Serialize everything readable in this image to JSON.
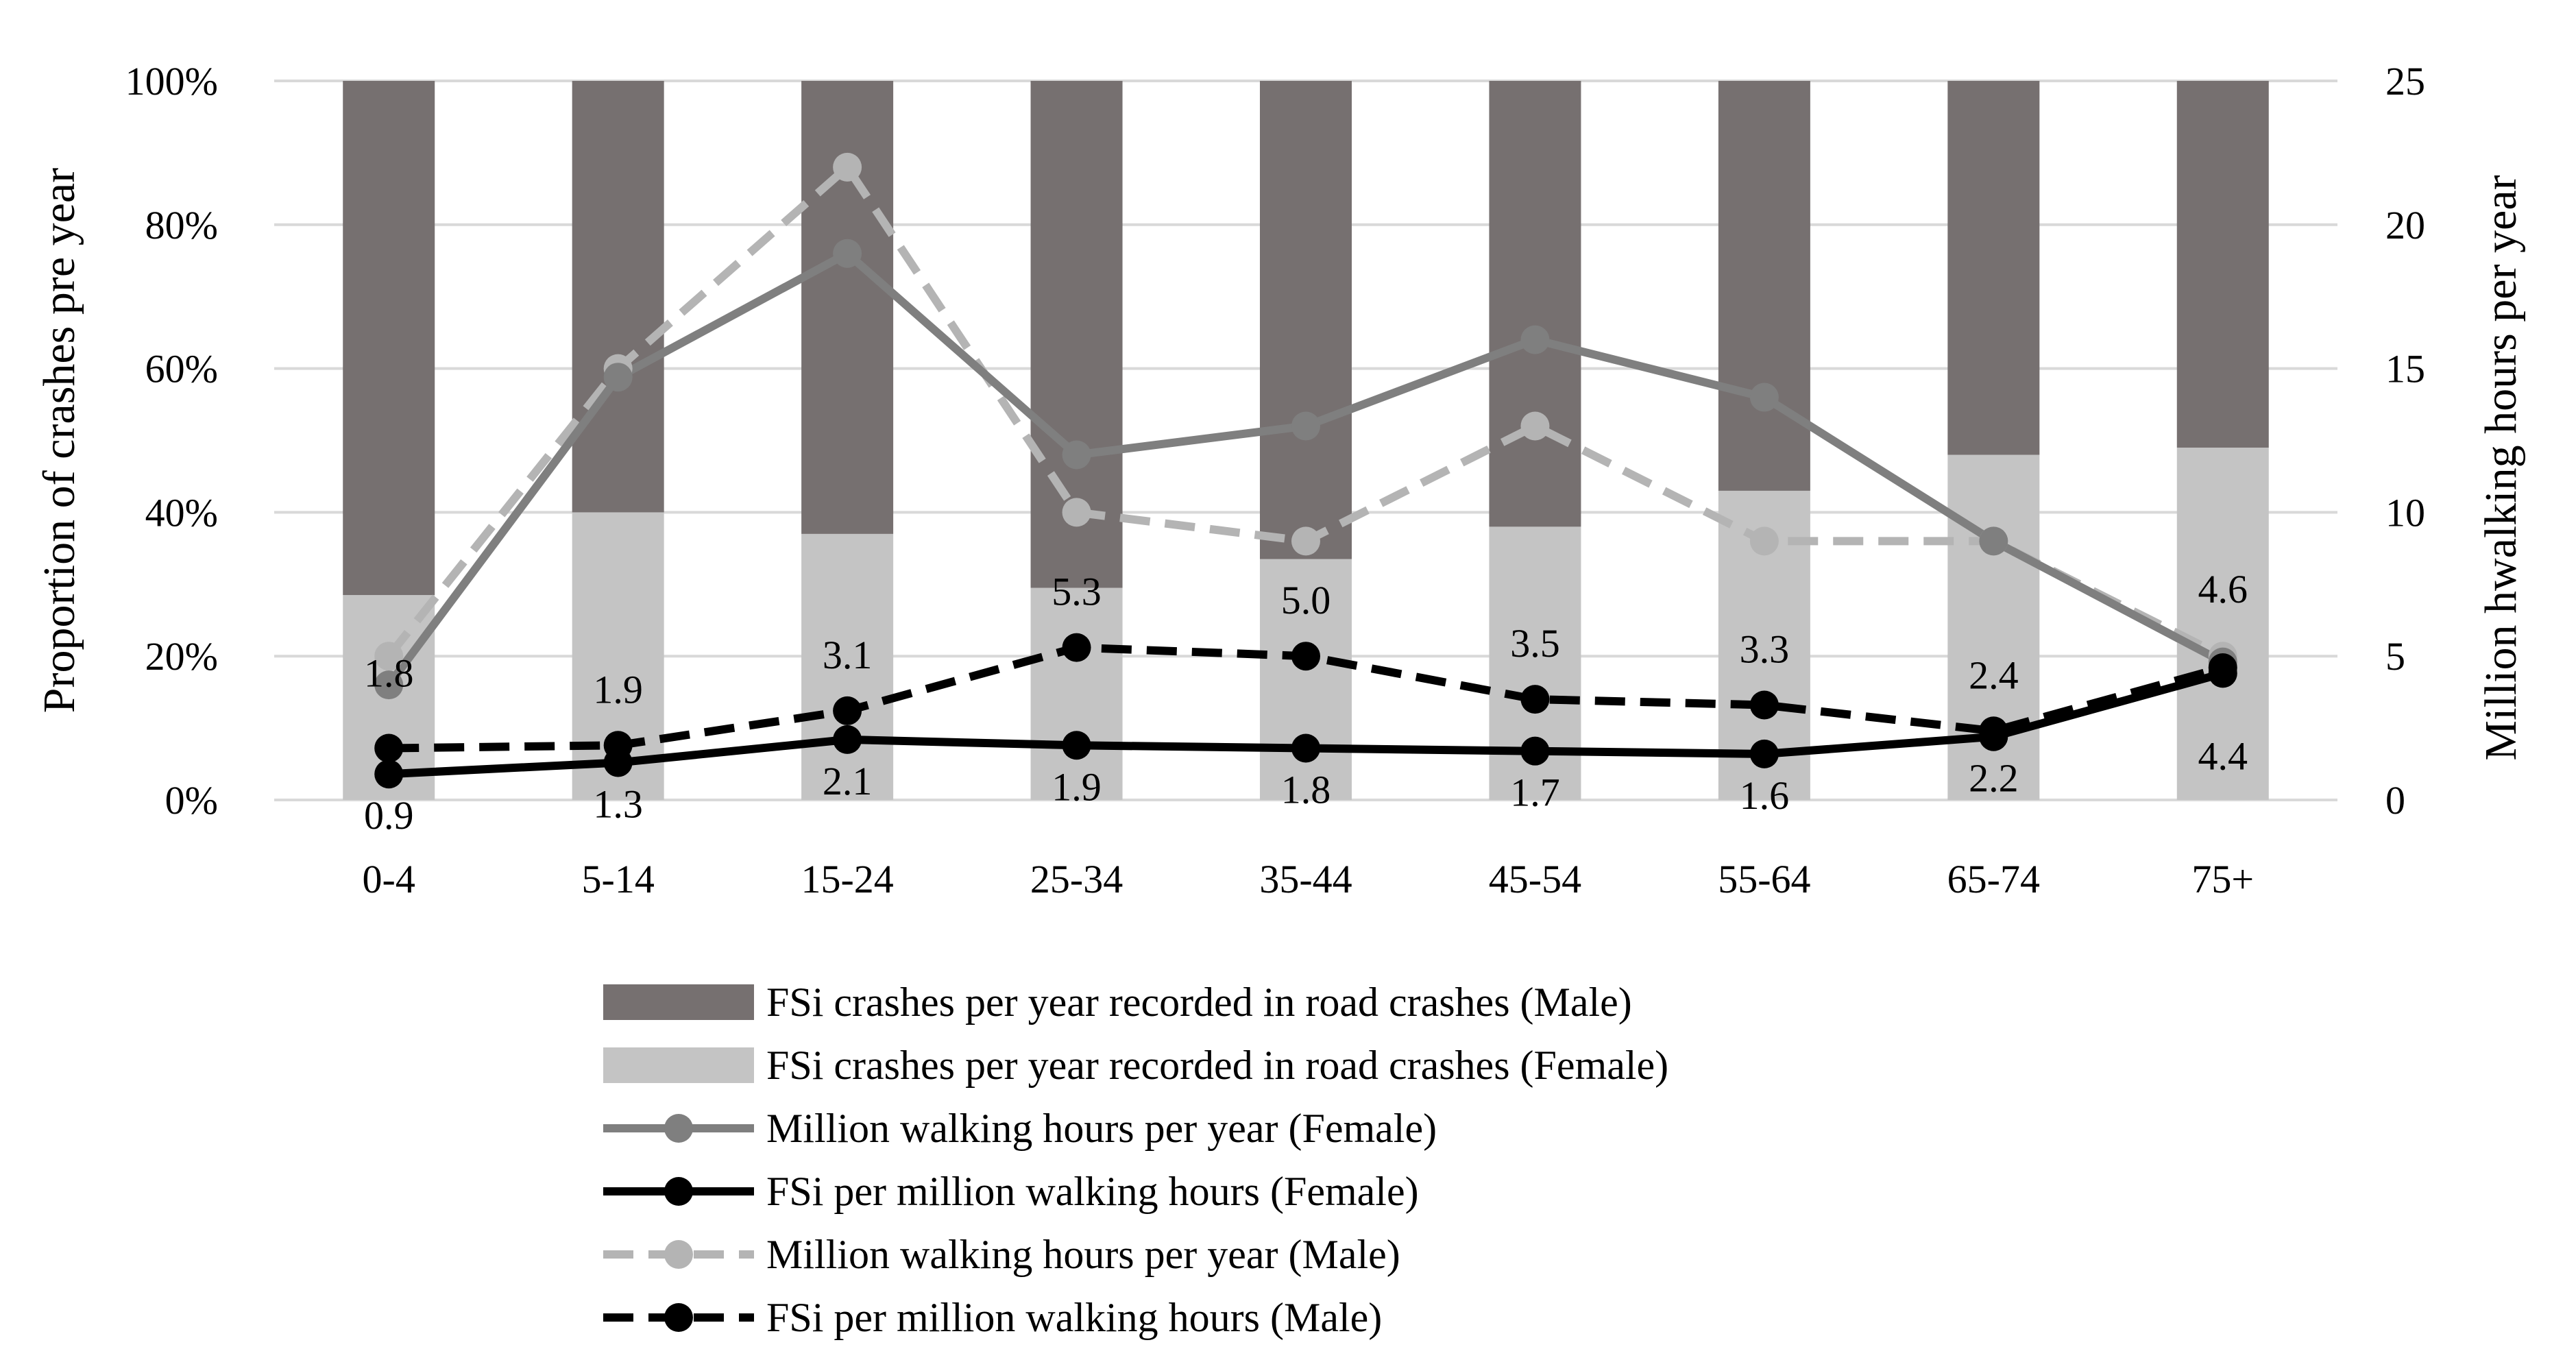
{
  "chart_data": {
    "type": "bar",
    "categories": [
      "0-4",
      "5-14",
      "15-24",
      "25-34",
      "35-44",
      "45-54",
      "55-64",
      "65-74",
      "75+"
    ],
    "y_left": {
      "label": "Proportion of crashes pre year",
      "range": [
        0,
        100
      ],
      "ticks": [
        "0%",
        "20%",
        "40%",
        "60%",
        "80%",
        "100%"
      ]
    },
    "y_right": {
      "label": "Million hwalking hours per year",
      "range": [
        0,
        25
      ],
      "ticks": [
        "0",
        "5",
        "10",
        "15",
        "20",
        "25"
      ]
    },
    "grid": true,
    "legend_position": "bottom",
    "series": [
      {
        "name": "FSi crashes per year recorded in road crashes (Male)",
        "kind": "stacked-bar",
        "axis": "left",
        "color": "#767070",
        "values": [
          71.5,
          60,
          63,
          70.5,
          66.5,
          62,
          57,
          52,
          51
        ]
      },
      {
        "name": "FSi crashes per year recorded in road crashes (Female)",
        "kind": "stacked-bar",
        "axis": "left",
        "color": "#c4c4c4",
        "values": [
          28.5,
          40,
          37,
          29.5,
          33.5,
          38,
          43,
          48,
          49
        ]
      },
      {
        "name": "Million walking hours per year (Female)",
        "kind": "line",
        "axis": "right",
        "color": "#7f7f7f",
        "dash": "solid",
        "values": [
          4,
          14.7,
          19,
          12,
          13,
          16,
          14,
          9,
          4.8
        ]
      },
      {
        "name": "FSi per million walking hours  (Female)",
        "kind": "line",
        "axis": "right",
        "color": "#000000",
        "dash": "solid",
        "values": [
          0.9,
          1.3,
          2.1,
          1.9,
          1.8,
          1.7,
          1.6,
          2.2,
          4.4
        ],
        "labels": [
          "0.9",
          "1.3",
          "2.1",
          "1.9",
          "1.8",
          "1.7",
          "1.6",
          "2.2",
          "4.4"
        ]
      },
      {
        "name": "Million walking hours per year (Male)",
        "kind": "line",
        "axis": "right",
        "color": "#b4b4b4",
        "dash": "dashed",
        "values": [
          5,
          15,
          22,
          10,
          9,
          13,
          9,
          9,
          5
        ]
      },
      {
        "name": "FSi per million walking hours (Male)",
        "kind": "line",
        "axis": "right",
        "color": "#000000",
        "dash": "dashed",
        "values": [
          1.8,
          1.9,
          3.1,
          5.3,
          5.0,
          3.5,
          3.3,
          2.4,
          4.6
        ],
        "labels": [
          "1.8",
          "1.9",
          "3.1",
          "5.3",
          "5.0",
          "3.5",
          "3.3",
          "2.4",
          "4.6"
        ]
      }
    ]
  }
}
